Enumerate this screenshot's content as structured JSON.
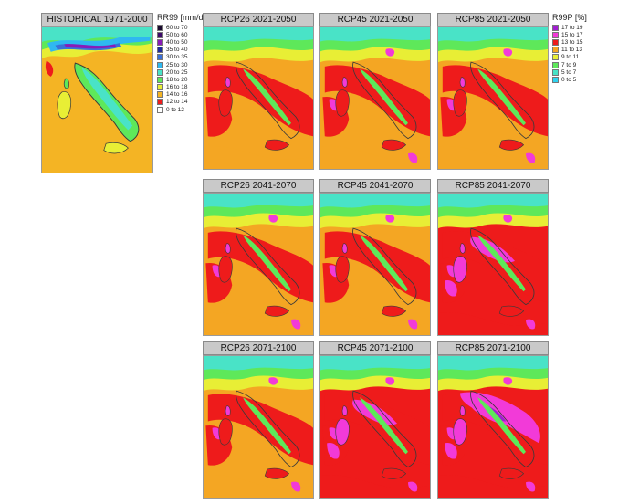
{
  "historical": {
    "title": "HISTORICAL  1971-2000",
    "legend_title": "RR99 [mm/d]",
    "legend": [
      {
        "label": "60 to 70",
        "color": "#1a0a2e"
      },
      {
        "label": "50 to 60",
        "color": "#3d0a6a"
      },
      {
        "label": "40 to 50",
        "color": "#8a1ab8"
      },
      {
        "label": "35 to 40",
        "color": "#1e2a9c"
      },
      {
        "label": "30 to 35",
        "color": "#3a6fd8"
      },
      {
        "label": "25 to 30",
        "color": "#2fb8f0"
      },
      {
        "label": "20 to 25",
        "color": "#49e3c7"
      },
      {
        "label": "18 to 20",
        "color": "#5ee85a"
      },
      {
        "label": "16 to 18",
        "color": "#e8ee35"
      },
      {
        "label": "14 to 16",
        "color": "#f4b424"
      },
      {
        "label": "12 to 14",
        "color": "#ee1b1b"
      },
      {
        "label": "0 to 12",
        "color": "#ffffff"
      }
    ]
  },
  "scenarios": {
    "legend_title": "R99P [%]",
    "legend": [
      {
        "label": "17 to 19",
        "color": "#a01fd0"
      },
      {
        "label": "15 to 17",
        "color": "#f23ad8"
      },
      {
        "label": "13 to 15",
        "color": "#ee1b1b"
      },
      {
        "label": "11 to 13",
        "color": "#f4a623"
      },
      {
        "label": "9 to 11",
        "color": "#e8ee35"
      },
      {
        "label": "7 to 9",
        "color": "#5ee85a"
      },
      {
        "label": "5 to 7",
        "color": "#49e3c7"
      },
      {
        "label": "0 to 5",
        "color": "#2fd3f0"
      }
    ],
    "panels": [
      {
        "title": "RCP26  2021-2050",
        "intensity": 1
      },
      {
        "title": "RCP45  2021-2050",
        "intensity": 2
      },
      {
        "title": "RCP85  2021-2050",
        "intensity": 2
      },
      {
        "title": "RCP26 2041-2070",
        "intensity": 2
      },
      {
        "title": "RCP45 2041-2070",
        "intensity": 2
      },
      {
        "title": "RCP85 2041-2070",
        "intensity": 3
      },
      {
        "title": "RCP26  2071-2100",
        "intensity": 2
      },
      {
        "title": "RCP45  2071-2100",
        "intensity": 3
      },
      {
        "title": "RCP85  2071-2100",
        "intensity": 4
      }
    ]
  },
  "colors": {
    "land": "#ffffff",
    "coast": "#3a3a3a"
  }
}
